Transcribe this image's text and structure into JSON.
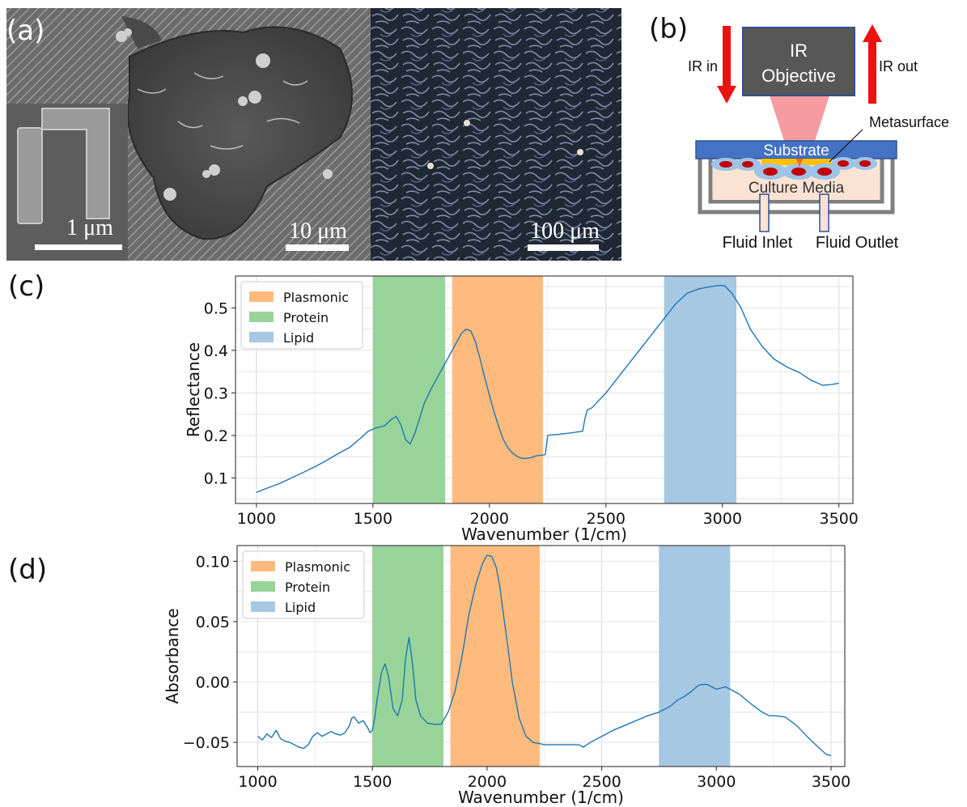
{
  "panel_labels": {
    "a": "(a)",
    "b": "(b)",
    "c": "(c)",
    "d": "(d)"
  },
  "panel_a": {
    "scale_bars": {
      "inset": "1 μm",
      "sem": "10 μm",
      "optical": "100 μm"
    }
  },
  "panel_b": {
    "objective": [
      "IR",
      "Objective"
    ],
    "ir_in": "IR in",
    "ir_out": "IR out",
    "metasurface": "Metasurface",
    "substrate": "Substrate",
    "culture_media": "Culture Media",
    "fluid_inlet": "Fluid Inlet",
    "fluid_outlet": "Fluid Outlet"
  },
  "colors": {
    "line": "#1f77b4",
    "plasmonic": "#ffbb7d",
    "protein": "#98d499",
    "lipid": "#a6c8e2",
    "arrow": "#ee1111",
    "objective": "#555555",
    "substrate": "#4472c4"
  },
  "chart_data": [
    {
      "type": "line",
      "xlabel": "Wavenumber (1/cm)",
      "ylabel": "Reflectance",
      "xlim": [
        910,
        3560
      ],
      "ylim": [
        0.04,
        0.575
      ],
      "xticks": [
        "1000",
        "1500",
        "2000",
        "2500",
        "3000",
        "3500"
      ],
      "yticks": [
        "0.1",
        "0.2",
        "0.3",
        "0.4",
        "0.5"
      ],
      "grid": true,
      "legend_position": "top-left",
      "bands": [
        {
          "name": "Plasmonic",
          "range": [
            1840,
            2230
          ]
        },
        {
          "name": "Protein",
          "range": [
            1500,
            1810
          ]
        },
        {
          "name": "Lipid",
          "range": [
            2750,
            3060
          ]
        }
      ],
      "x": [
        1000,
        1050,
        1100,
        1150,
        1200,
        1250,
        1300,
        1350,
        1400,
        1450,
        1480,
        1510,
        1550,
        1580,
        1600,
        1620,
        1640,
        1660,
        1680,
        1700,
        1720,
        1750,
        1780,
        1800,
        1820,
        1840,
        1860,
        1880,
        1900,
        1920,
        1940,
        1960,
        1980,
        2000,
        2020,
        2040,
        2060,
        2080,
        2100,
        2120,
        2140,
        2160,
        2180,
        2200,
        2220,
        2240,
        2250,
        2260,
        2300,
        2350,
        2400,
        2410,
        2420,
        2440,
        2500,
        2600,
        2700,
        2800,
        2850,
        2900,
        2950,
        2990,
        3010,
        3040,
        3080,
        3120,
        3170,
        3220,
        3280,
        3330,
        3380,
        3430,
        3470,
        3500
      ],
      "y": [
        0.066,
        0.077,
        0.087,
        0.1,
        0.113,
        0.126,
        0.141,
        0.157,
        0.172,
        0.195,
        0.21,
        0.217,
        0.223,
        0.238,
        0.245,
        0.225,
        0.19,
        0.18,
        0.205,
        0.24,
        0.275,
        0.31,
        0.34,
        0.36,
        0.38,
        0.4,
        0.42,
        0.44,
        0.45,
        0.446,
        0.42,
        0.38,
        0.335,
        0.295,
        0.255,
        0.22,
        0.19,
        0.17,
        0.158,
        0.15,
        0.146,
        0.146,
        0.148,
        0.152,
        0.153,
        0.155,
        0.2,
        0.201,
        0.203,
        0.206,
        0.21,
        0.24,
        0.26,
        0.265,
        0.3,
        0.37,
        0.44,
        0.51,
        0.535,
        0.545,
        0.55,
        0.553,
        0.552,
        0.535,
        0.5,
        0.45,
        0.41,
        0.38,
        0.36,
        0.348,
        0.33,
        0.318,
        0.32,
        0.323
      ]
    },
    {
      "type": "line",
      "xlabel": "Wavenumber (1/cm)",
      "ylabel": "Absorbance",
      "xlim": [
        910,
        3560
      ],
      "ylim": [
        -0.07,
        0.113
      ],
      "xticks": [
        "1000",
        "1500",
        "2000",
        "2500",
        "3000",
        "3500"
      ],
      "yticks": [
        "−0.05",
        "0.00",
        "0.05",
        "0.10"
      ],
      "yticks_values": [
        -0.05,
        0.0,
        0.05,
        0.1
      ],
      "grid": true,
      "legend_position": "top-left",
      "bands": [
        {
          "name": "Plasmonic",
          "range": [
            1840,
            2230
          ]
        },
        {
          "name": "Protein",
          "range": [
            1500,
            1810
          ]
        },
        {
          "name": "Lipid",
          "range": [
            2750,
            3060
          ]
        }
      ],
      "x": [
        1000,
        1020,
        1040,
        1060,
        1080,
        1100,
        1120,
        1140,
        1160,
        1180,
        1200,
        1220,
        1240,
        1260,
        1280,
        1300,
        1320,
        1340,
        1360,
        1380,
        1400,
        1410,
        1420,
        1440,
        1460,
        1480,
        1490,
        1500,
        1510,
        1520,
        1540,
        1555,
        1570,
        1590,
        1610,
        1630,
        1645,
        1660,
        1675,
        1690,
        1710,
        1740,
        1770,
        1800,
        1830,
        1860,
        1890,
        1920,
        1950,
        1980,
        2000,
        2020,
        2040,
        2055,
        2070,
        2090,
        2110,
        2140,
        2170,
        2200,
        2230,
        2250,
        2300,
        2350,
        2400,
        2420,
        2450,
        2500,
        2550,
        2600,
        2650,
        2700,
        2750,
        2800,
        2830,
        2860,
        2890,
        2920,
        2940,
        2960,
        2980,
        3000,
        3020,
        3040,
        3060,
        3100,
        3150,
        3200,
        3230,
        3260,
        3300,
        3350,
        3400,
        3450,
        3480,
        3500
      ],
      "y": [
        -0.045,
        -0.048,
        -0.043,
        -0.046,
        -0.04,
        -0.047,
        -0.049,
        -0.05,
        -0.052,
        -0.054,
        -0.055,
        -0.052,
        -0.045,
        -0.042,
        -0.045,
        -0.043,
        -0.041,
        -0.043,
        -0.044,
        -0.042,
        -0.036,
        -0.03,
        -0.029,
        -0.034,
        -0.032,
        -0.038,
        -0.042,
        -0.04,
        -0.03,
        -0.015,
        0.008,
        0.015,
        0.005,
        -0.022,
        -0.028,
        -0.015,
        0.02,
        0.037,
        0.015,
        -0.015,
        -0.028,
        -0.034,
        -0.035,
        -0.035,
        -0.025,
        -0.008,
        0.02,
        0.055,
        0.08,
        0.098,
        0.105,
        0.104,
        0.095,
        0.08,
        0.058,
        0.03,
        0.0,
        -0.03,
        -0.045,
        -0.05,
        -0.051,
        -0.052,
        -0.052,
        -0.052,
        -0.052,
        -0.054,
        -0.05,
        -0.045,
        -0.04,
        -0.036,
        -0.032,
        -0.028,
        -0.025,
        -0.02,
        -0.015,
        -0.012,
        -0.008,
        -0.003,
        -0.002,
        -0.002,
        -0.004,
        -0.006,
        -0.005,
        -0.004,
        -0.006,
        -0.01,
        -0.018,
        -0.025,
        -0.028,
        -0.028,
        -0.029,
        -0.036,
        -0.046,
        -0.055,
        -0.06,
        -0.061
      ]
    }
  ]
}
